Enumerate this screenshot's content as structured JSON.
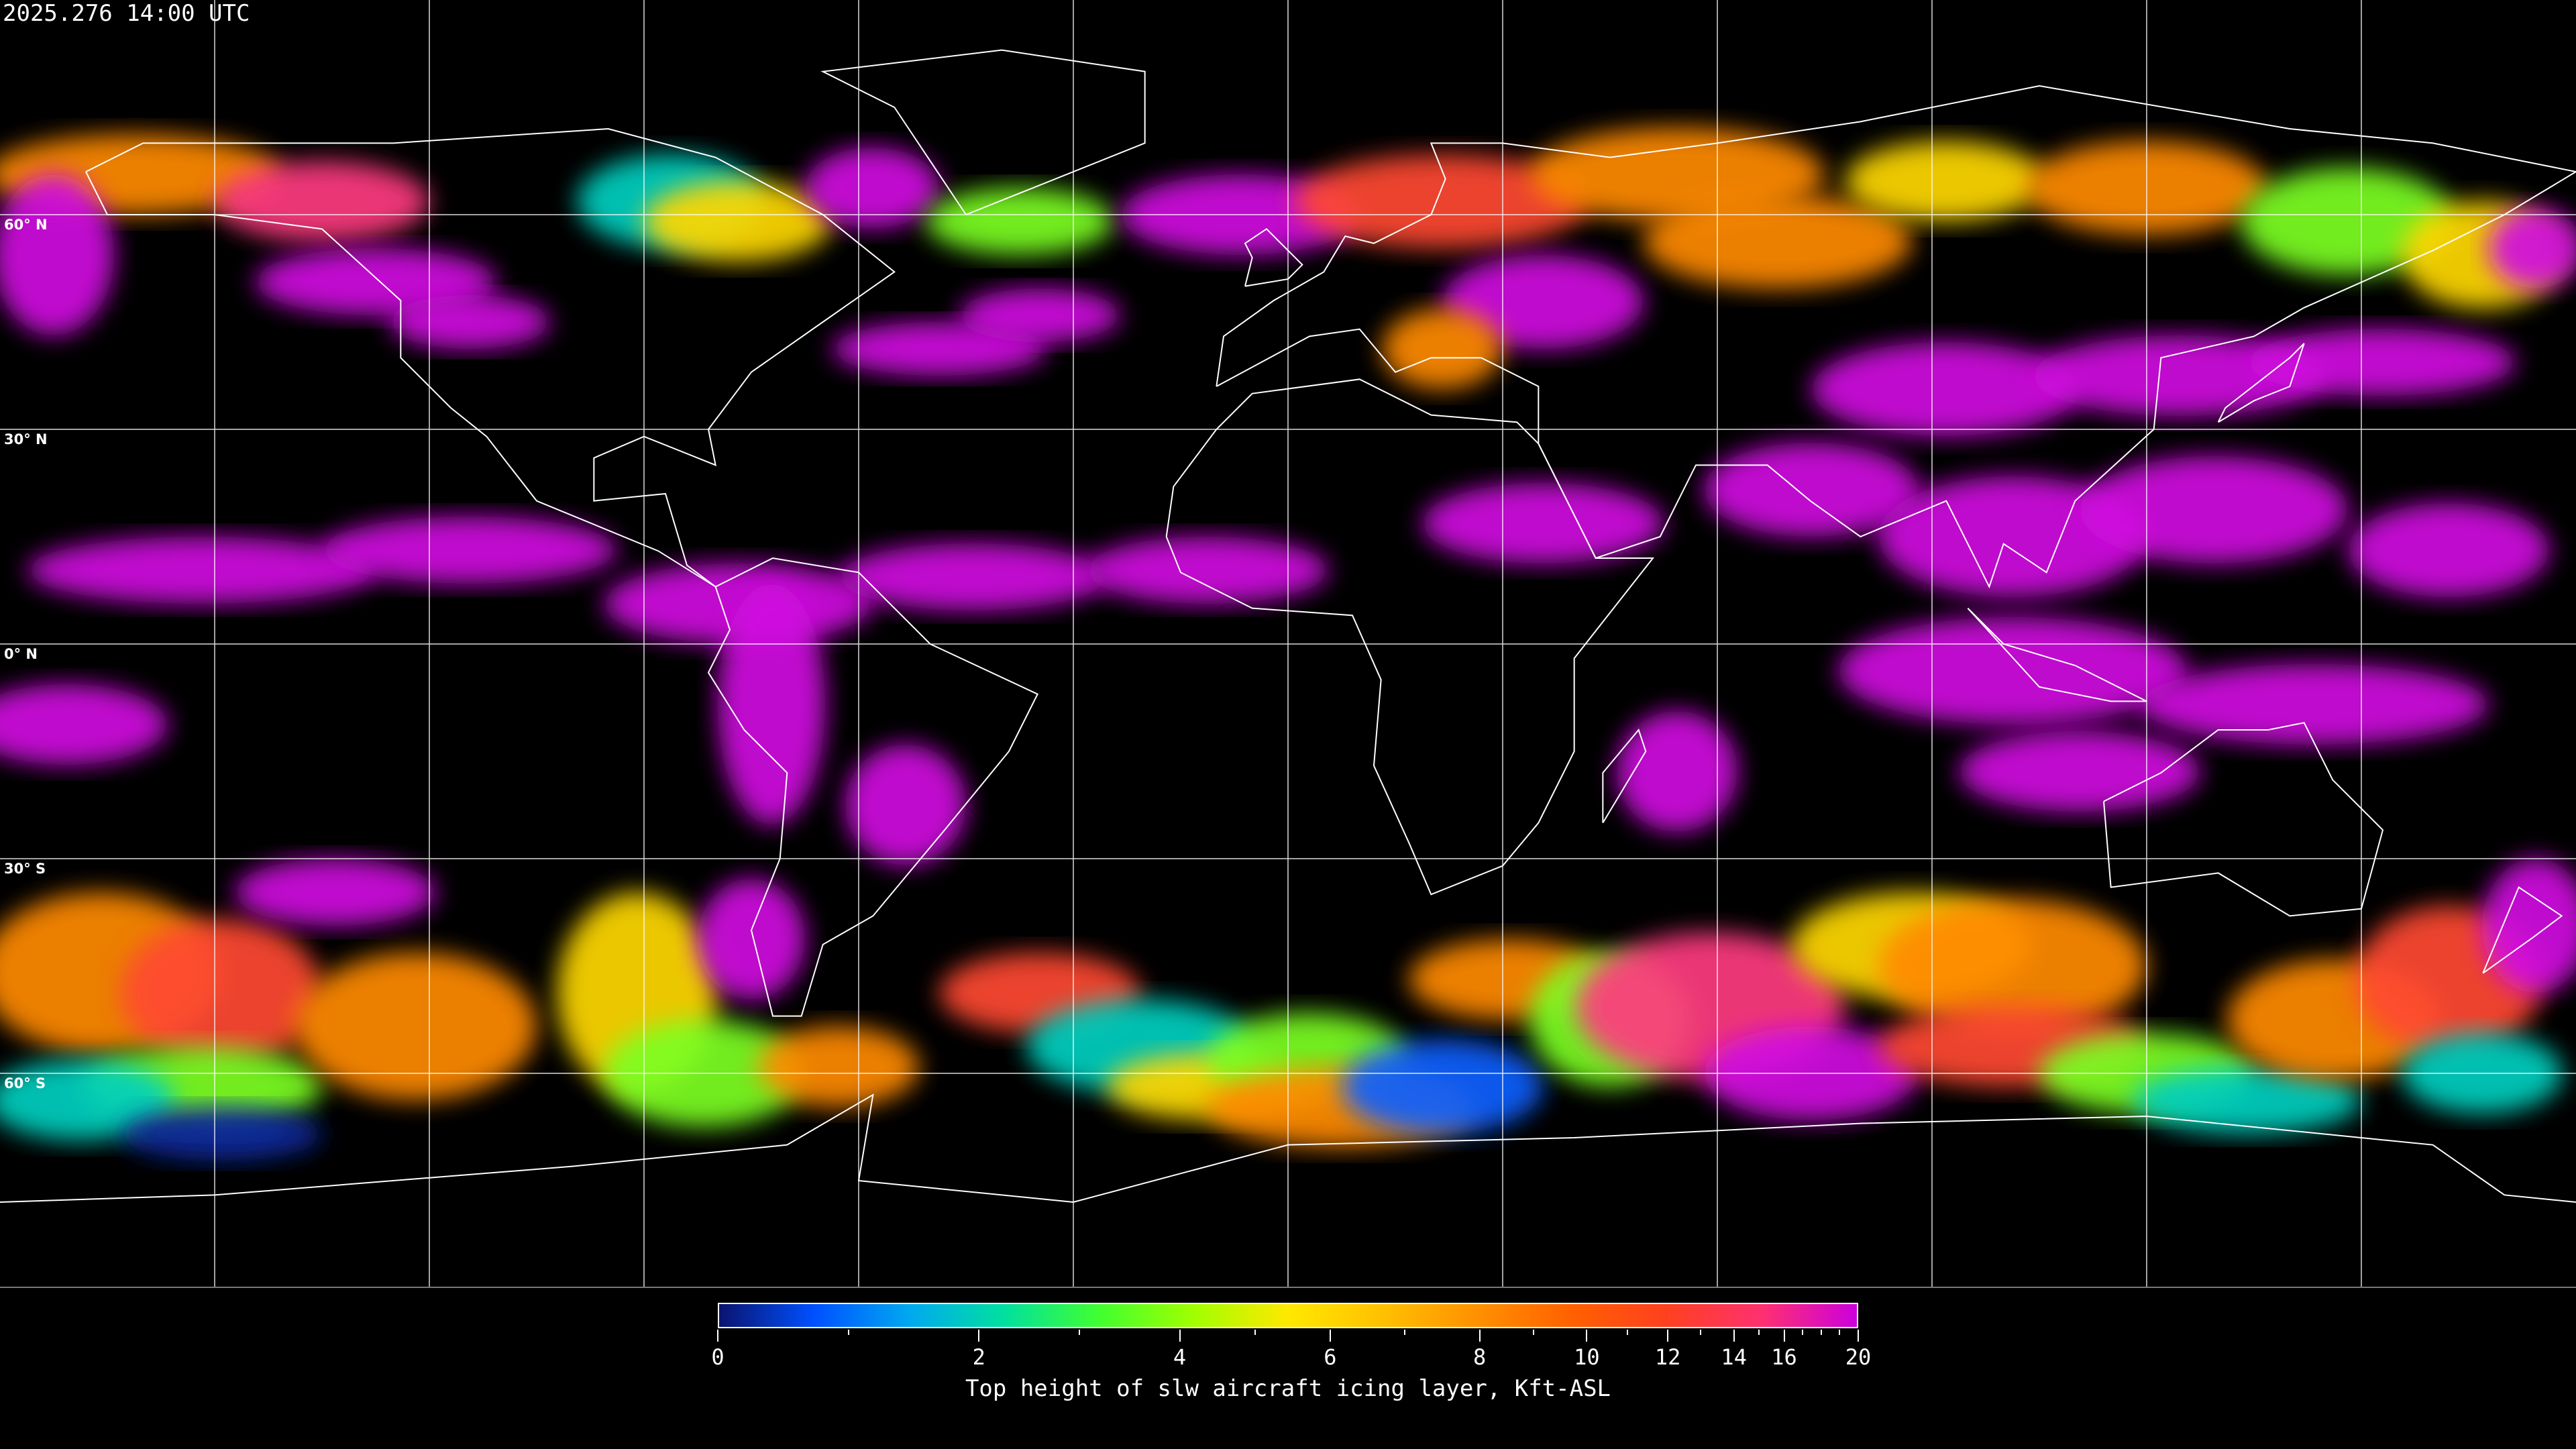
{
  "header": {
    "timestamp": "2025.276 14:00 UTC"
  },
  "map": {
    "projection": "equirectangular",
    "background_color": "#000000",
    "coastline_color": "#ffffff",
    "grid_color": "#ffffff",
    "lat_labels": [
      "60° N",
      "30° N",
      "0° N",
      "30° S",
      "60° S"
    ]
  },
  "colorbar": {
    "caption": "Top height of slw aircraft icing layer, Kft-ASL",
    "tick_labels": [
      "0",
      "2",
      "4",
      "6",
      "8",
      "10",
      "12",
      "14",
      "16",
      "20"
    ],
    "tick_values": [
      0,
      2,
      4,
      6,
      8,
      10,
      12,
      14,
      16,
      20
    ],
    "minor_tick_values": [
      1,
      3,
      5,
      7,
      9,
      11,
      13,
      15,
      17,
      18,
      19
    ],
    "range": [
      0,
      20
    ],
    "colors": [
      "#0a1470",
      "#0050ff",
      "#00a8f0",
      "#00e0a0",
      "#40ff30",
      "#a0ff00",
      "#ffe800",
      "#ffc000",
      "#ff9000",
      "#ff6000",
      "#ff4020",
      "#ff3070",
      "#cc00dd"
    ]
  }
}
